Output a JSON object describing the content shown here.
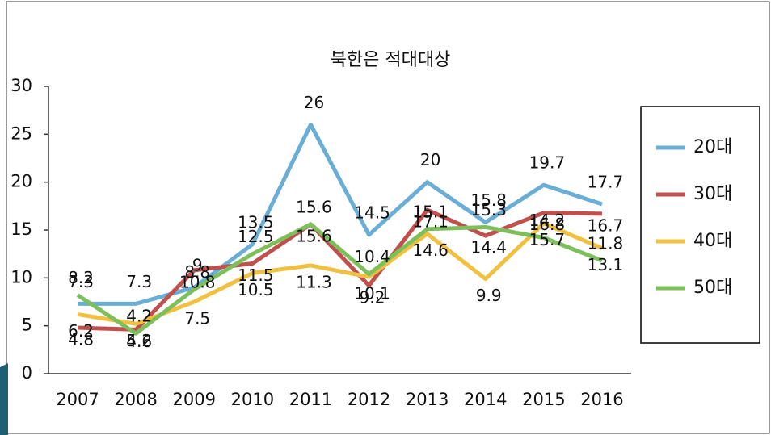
{
  "chart_data": {
    "type": "line",
    "title": "북한은 적대대상",
    "categories": [
      "2007",
      "2008",
      "2009",
      "2010",
      "2011",
      "2012",
      "2013",
      "2014",
      "2015",
      "2016"
    ],
    "series": [
      {
        "name": "20대",
        "color": "#6aaed6",
        "values": [
          7.3,
          7.3,
          9,
          13.5,
          26,
          14.5,
          20,
          15.8,
          19.7,
          17.7
        ]
      },
      {
        "name": "30대",
        "color": "#c0504d",
        "values": [
          4.8,
          4.6,
          10.8,
          11.5,
          15.6,
          9.2,
          17.1,
          14.4,
          16.8,
          16.7
        ]
      },
      {
        "name": "40대",
        "color": "#f0c040",
        "values": [
          6.2,
          5.2,
          7.5,
          10.5,
          11.3,
          10.1,
          14.6,
          9.9,
          15.7,
          13.1
        ]
      },
      {
        "name": "50대",
        "color": "#7dbf5a",
        "values": [
          8.2,
          4.2,
          8.8,
          12.5,
          15.6,
          10.4,
          15.1,
          15.3,
          14.2,
          11.8
        ]
      }
    ],
    "ylim": [
      0,
      30
    ],
    "yticks": [
      0,
      5,
      10,
      15,
      20,
      25,
      30
    ],
    "legend": "right"
  }
}
